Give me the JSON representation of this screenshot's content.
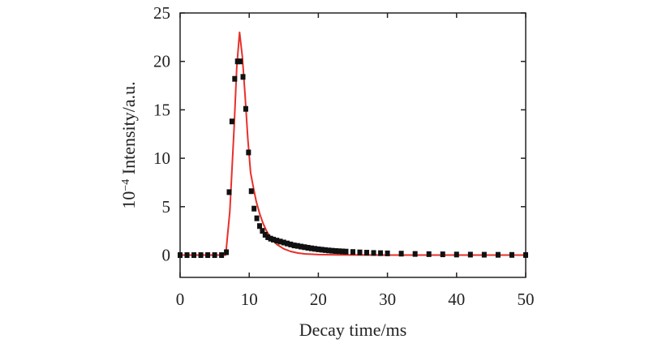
{
  "chart_data": {
    "type": "scatter",
    "xlabel": "Decay time/ms",
    "ylabel_prefix": "10",
    "ylabel_exponent": "−4",
    "ylabel_rest": " Intensity/a.u.",
    "xlim": [
      0,
      50
    ],
    "ylim": [
      -2.3,
      25
    ],
    "x_ticks": [
      0,
      10,
      20,
      30,
      40,
      50
    ],
    "y_ticks": [
      0,
      5,
      10,
      15,
      20,
      25
    ],
    "grid": false,
    "colors": {
      "measured": "#111111",
      "fit": "#e8302a",
      "axis": "#222222"
    },
    "series": [
      {
        "kind": "markers",
        "x": [
          0,
          1,
          2,
          3,
          4,
          5,
          6,
          6.7,
          7.1,
          7.5,
          7.9,
          8.3,
          8.7,
          9.1,
          9.5,
          9.9,
          10.3,
          10.7,
          11.1,
          11.5,
          11.9,
          12.3,
          12.7,
          13.1,
          13.5,
          14,
          14.5,
          15,
          15.5,
          16,
          16.5,
          17,
          17.5,
          18,
          18.5,
          19,
          19.5,
          20,
          20.5,
          21,
          21.5,
          22,
          22.5,
          23,
          23.5,
          24,
          25,
          26,
          27,
          28,
          29,
          30,
          32,
          34,
          36,
          38,
          40,
          42,
          44,
          46,
          48,
          50
        ],
        "y": [
          0,
          0,
          0,
          0,
          0,
          0,
          0,
          0.3,
          6.5,
          13.8,
          18.2,
          20.0,
          20.0,
          18.4,
          15.1,
          10.6,
          6.6,
          4.8,
          3.8,
          3.0,
          2.5,
          2.1,
          1.85,
          1.7,
          1.6,
          1.5,
          1.4,
          1.3,
          1.2,
          1.1,
          1.0,
          0.95,
          0.88,
          0.82,
          0.76,
          0.7,
          0.65,
          0.6,
          0.56,
          0.52,
          0.48,
          0.45,
          0.42,
          0.4,
          0.38,
          0.36,
          0.32,
          0.28,
          0.25,
          0.22,
          0.2,
          0.18,
          0.15,
          0.12,
          0.1,
          0.08,
          0.06,
          0.05,
          0.04,
          0.03,
          0.02,
          0.01
        ]
      },
      {
        "kind": "line",
        "x": [
          0,
          6.6,
          7.2,
          7.8,
          8.2,
          8.6,
          9.0,
          9.4,
          9.8,
          10.2,
          10.6,
          11,
          11.5,
          12,
          12.5,
          13,
          13.5,
          14,
          15,
          16,
          17,
          18,
          20,
          23,
          26,
          30,
          35,
          40,
          45,
          50
        ],
        "y": [
          0,
          0,
          4.5,
          13,
          19.5,
          23.0,
          20.5,
          16.5,
          12,
          8.5,
          7.0,
          5.6,
          4.3,
          3.3,
          2.5,
          1.9,
          1.45,
          1.1,
          0.65,
          0.38,
          0.22,
          0.13,
          0.05,
          0.02,
          0.01,
          0,
          0,
          0,
          0,
          0
        ]
      }
    ]
  }
}
